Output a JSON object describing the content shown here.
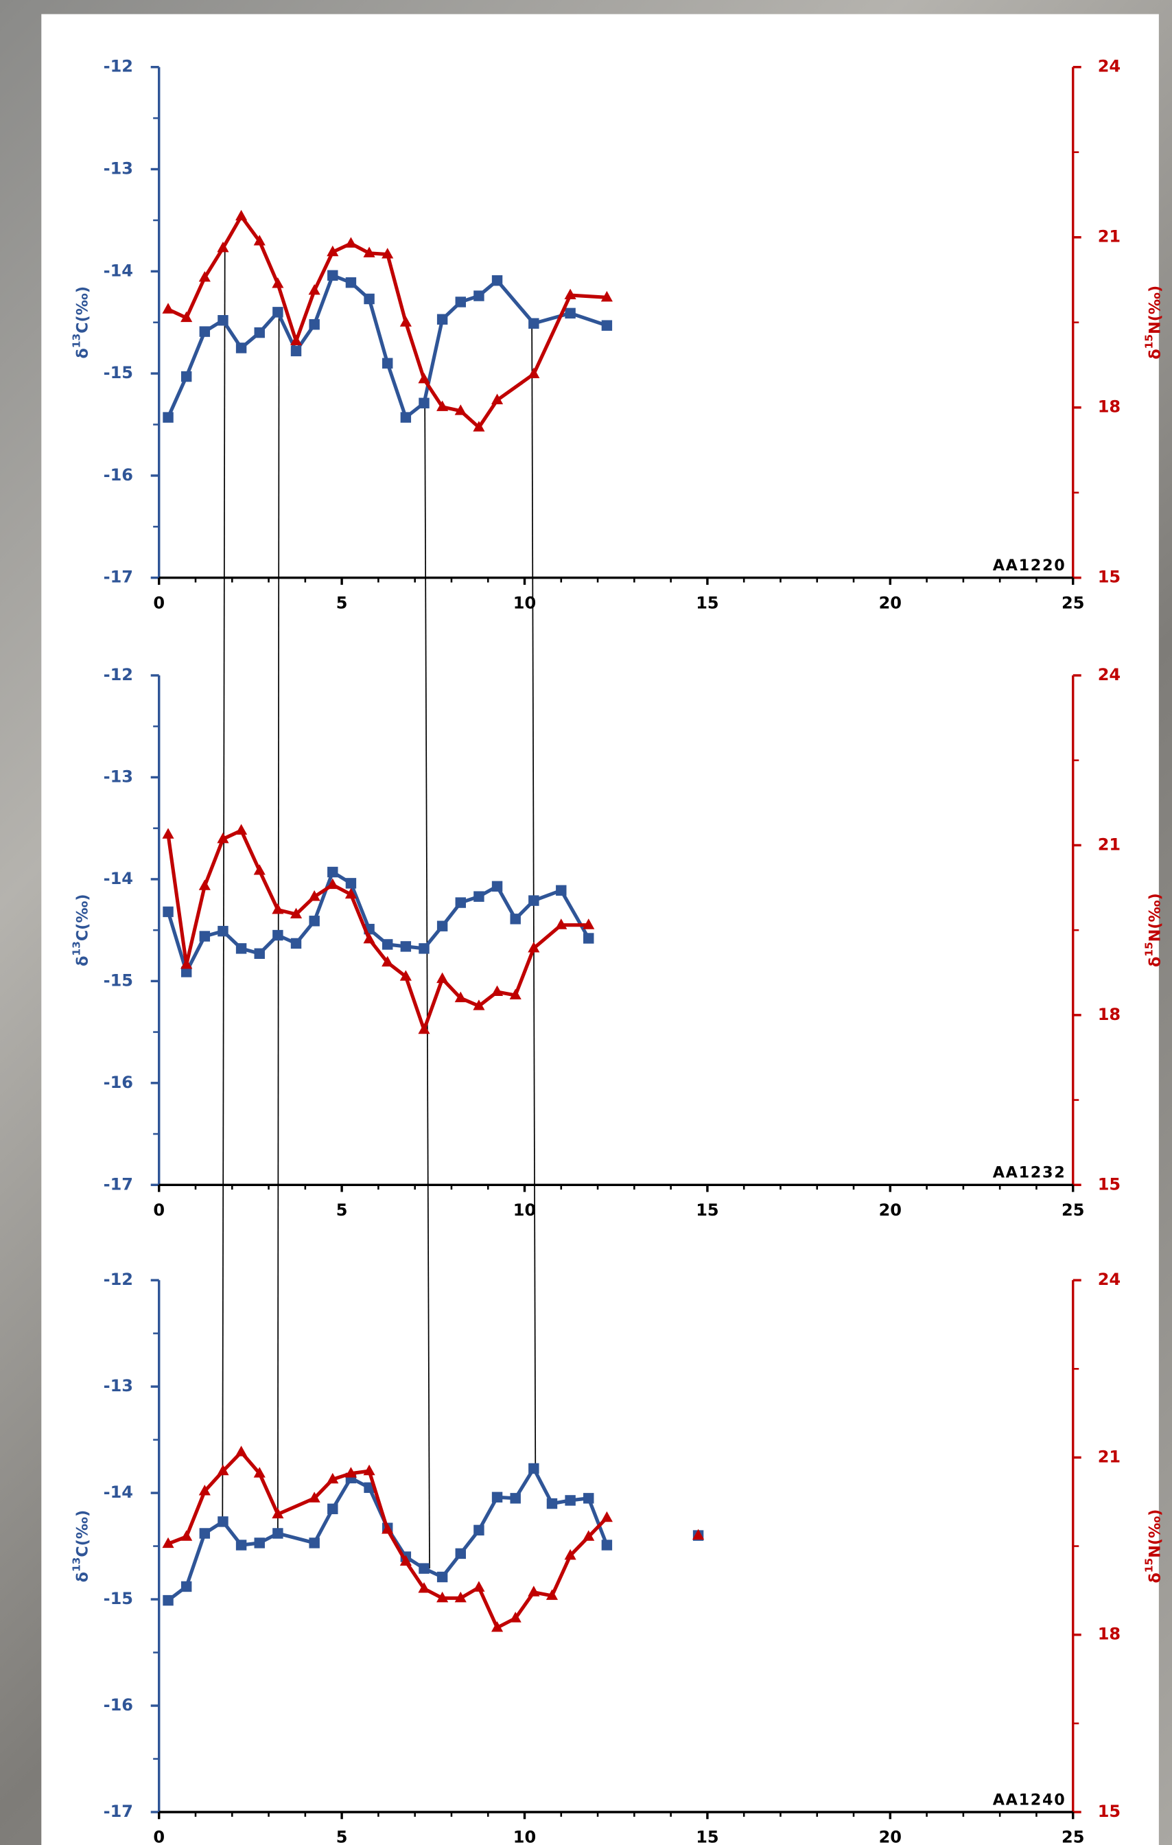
{
  "chart_data": [
    {
      "type": "line",
      "label": "AA1220",
      "ylabel": [
        "δ",
        "13",
        "C(‰)"
      ],
      "y2label": [
        "δ",
        "15",
        "N(‰)"
      ],
      "x": [
        0.25,
        0.75,
        1.25,
        1.75,
        2.25,
        2.75,
        3.25,
        3.75,
        4.25,
        4.75,
        5.25,
        5.75,
        6.25,
        6.75,
        7.25,
        7.75,
        8.25,
        8.75,
        9.25,
        10.25,
        11.25,
        12.25
      ],
      "xlim": [
        0,
        25
      ],
      "xticks": [
        0,
        5,
        10,
        15,
        20,
        25
      ],
      "x_minor_ticks": [
        1,
        2,
        3,
        4,
        6,
        7,
        8,
        9,
        11,
        12,
        13,
        14,
        16,
        17,
        18,
        19,
        21,
        22,
        23,
        24
      ],
      "ylim": [
        -17,
        -12
      ],
      "yticks": [
        -17,
        -16,
        -15,
        -14,
        -13,
        -12
      ],
      "y_minor_ticks": [
        -16.5,
        -15.5,
        -14.5,
        -13.5,
        -12.5
      ],
      "y2lim": [
        15,
        24
      ],
      "y2ticks": [
        15,
        18,
        21,
        24
      ],
      "y2_minor_ticks": [
        16.5,
        19.5,
        22.5
      ],
      "series": [
        {
          "color": "#2f5597",
          "marker": "square",
          "values": [
            -15.43,
            -15.03,
            -14.59,
            -14.48,
            -14.75,
            -14.6,
            -14.4,
            -14.78,
            -14.52,
            -14.04,
            -14.11,
            -14.27,
            -14.9,
            -15.43,
            -15.29,
            -14.47,
            -14.3,
            -14.24,
            -14.09,
            -14.51,
            -14.41,
            -14.53
          ]
        },
        {
          "color": "#c00000",
          "marker": "triangle",
          "axis": "y2",
          "values": [
            19.73,
            19.58,
            20.29,
            20.81,
            21.37,
            20.93,
            20.18,
            19.17,
            20.06,
            20.74,
            20.89,
            20.72,
            20.7,
            19.5,
            18.5,
            18.01,
            17.94,
            17.65,
            18.13,
            18.59,
            19.98,
            19.94
          ]
        }
      ]
    },
    {
      "type": "line",
      "label": "AA1232",
      "ylabel": [
        "δ",
        "13",
        "C(‰)"
      ],
      "y2label": [
        "δ",
        "15",
        "N(‰)"
      ],
      "x": [
        0.25,
        0.75,
        1.25,
        1.75,
        2.25,
        2.75,
        3.25,
        3.75,
        4.25,
        4.75,
        5.25,
        5.75,
        6.25,
        6.75,
        7.25,
        7.75,
        8.25,
        8.75,
        9.25,
        9.75,
        10.25,
        11,
        11.75
      ],
      "xlim": [
        0,
        25
      ],
      "xticks": [
        0,
        5,
        10,
        15,
        20,
        25
      ],
      "x_minor_ticks": [
        1,
        2,
        3,
        4,
        6,
        7,
        8,
        9,
        11,
        12,
        13,
        14,
        16,
        17,
        18,
        19,
        21,
        22,
        23,
        24
      ],
      "ylim": [
        -17,
        -12
      ],
      "yticks": [
        -17,
        -16,
        -15,
        -14,
        -13,
        -12
      ],
      "y_minor_ticks": [
        -16.5,
        -15.5,
        -14.5,
        -13.5,
        -12.5
      ],
      "y2lim": [
        15,
        24
      ],
      "y2ticks": [
        15,
        18,
        21,
        24
      ],
      "y2_minor_ticks": [
        16.5,
        19.5,
        22.5
      ],
      "series": [
        {
          "color": "#2f5597",
          "marker": "square",
          "values": [
            -14.32,
            -14.91,
            -14.56,
            -14.51,
            -14.68,
            -14.73,
            -14.55,
            -14.63,
            -14.41,
            -13.93,
            -14.04,
            -14.49,
            -14.64,
            -14.66,
            -14.68,
            -14.46,
            -14.23,
            -14.17,
            -14.07,
            -14.39,
            -14.21,
            -14.11,
            -14.58
          ]
        },
        {
          "color": "#c00000",
          "marker": "triangle",
          "axis": "y2",
          "values": [
            21.19,
            18.89,
            20.28,
            21.11,
            21.26,
            20.55,
            19.86,
            19.78,
            20.09,
            20.3,
            20.13,
            19.34,
            18.93,
            18.68,
            17.74,
            18.64,
            18.3,
            18.16,
            18.41,
            18.35,
            19.18,
            19.59,
            19.59
          ]
        }
      ]
    },
    {
      "type": "line",
      "label": "AA1240",
      "ylabel": [
        "δ",
        "13",
        "C(‰)"
      ],
      "y2label": [
        "δ",
        "15",
        "N(‰)"
      ],
      "x": [
        0.25,
        0.75,
        1.25,
        1.75,
        2.25,
        2.75,
        3.25,
        4.25,
        4.75,
        5.25,
        5.75,
        6.25,
        6.75,
        7.25,
        7.75,
        8.25,
        8.75,
        9.25,
        9.75,
        10.25,
        10.75,
        11.25,
        11.75,
        12.25
      ],
      "xlim": [
        0,
        25
      ],
      "xticks": [
        0,
        5,
        10,
        15,
        20,
        25
      ],
      "x_minor_ticks": [
        1,
        2,
        3,
        4,
        6,
        7,
        8,
        9,
        11,
        12,
        13,
        14,
        16,
        17,
        18,
        19,
        21,
        22,
        23,
        24
      ],
      "ylim": [
        -17,
        -12
      ],
      "yticks": [
        -17,
        -16,
        -15,
        -14,
        -13,
        -12
      ],
      "y_minor_ticks": [
        -16.5,
        -15.5,
        -14.5,
        -13.5,
        -12.5
      ],
      "y2lim": [
        15,
        24
      ],
      "y2ticks": [
        15,
        18,
        21,
        24
      ],
      "y2_minor_ticks": [
        16.5,
        19.5,
        22.5
      ],
      "series": [
        {
          "color": "#2f5597",
          "marker": "square",
          "values": [
            -15.01,
            -14.88,
            -14.38,
            -14.27,
            -14.49,
            -14.47,
            -14.38,
            -14.47,
            -14.15,
            -13.86,
            -13.95,
            -14.33,
            -14.6,
            -14.71,
            -14.79,
            -14.57,
            -14.35,
            -14.04,
            -14.05,
            -13.77,
            -14.1,
            -14.07,
            -14.05,
            -14.49
          ]
        },
        {
          "color": "#c00000",
          "marker": "triangle",
          "axis": "y2",
          "values": [
            19.54,
            19.66,
            20.43,
            20.77,
            21.09,
            20.73,
            20.04,
            20.31,
            20.63,
            20.73,
            20.77,
            19.78,
            19.24,
            18.78,
            18.62,
            18.62,
            18.8,
            18.12,
            18.28,
            18.72,
            18.66,
            19.34,
            19.66,
            19.98
          ]
        },
        {
          "color": "#2f5597",
          "marker": "square",
          "x": [
            14.75
          ],
          "values": [
            -14.4
          ]
        },
        {
          "color": "#c00000",
          "marker": "triangle",
          "axis": "y2",
          "x": [
            14.75
          ],
          "values": [
            19.68
          ]
        }
      ]
    }
  ]
}
